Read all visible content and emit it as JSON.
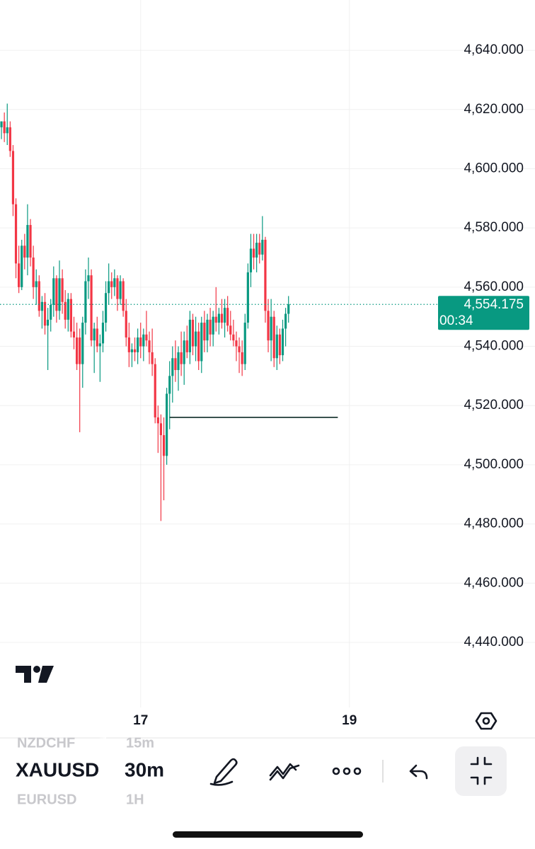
{
  "chart_data": {
    "type": "candlestick",
    "ohlc": [
      [
        4614,
        4616,
        4610,
        4616
      ],
      [
        4616,
        4619,
        4609,
        4612
      ],
      [
        4612,
        4622,
        4608,
        4614
      ],
      [
        4614,
        4616,
        4604,
        4606
      ],
      [
        4606,
        4608,
        4584,
        4588
      ],
      [
        4588,
        4590,
        4563,
        4568
      ],
      [
        4568,
        4574,
        4558,
        4560
      ],
      [
        4560,
        4576,
        4559,
        4574
      ],
      [
        4574,
        4578,
        4566,
        4570
      ],
      [
        4570,
        4588,
        4564,
        4581
      ],
      [
        4581,
        4583,
        4567,
        4570
      ],
      [
        4570,
        4574,
        4556,
        4560
      ],
      [
        4560,
        4566,
        4554,
        4562
      ],
      [
        4562,
        4564,
        4550,
        4552
      ],
      [
        4552,
        4557,
        4546,
        4555
      ],
      [
        4555,
        4558,
        4544,
        4547
      ],
      [
        4547,
        4553,
        4532,
        4549
      ],
      [
        4549,
        4556,
        4545,
        4554
      ],
      [
        4554,
        4567,
        4550,
        4563
      ],
      [
        4563,
        4564,
        4548,
        4552
      ],
      [
        4552,
        4569,
        4549,
        4563
      ],
      [
        4563,
        4566,
        4551,
        4555
      ],
      [
        4555,
        4559,
        4546,
        4549
      ],
      [
        4549,
        4558,
        4545,
        4556
      ],
      [
        4556,
        4558,
        4543,
        4545
      ],
      [
        4545,
        4550,
        4539,
        4543
      ],
      [
        4543,
        4548,
        4532,
        4534
      ],
      [
        4543,
        4546,
        4511,
        4534
      ],
      [
        4534,
        4550,
        4526,
        4548
      ],
      [
        4548,
        4566,
        4544,
        4562
      ],
      [
        4562,
        4570,
        4556,
        4564
      ],
      [
        4564,
        4566,
        4540,
        4542
      ],
      [
        4542,
        4548,
        4531,
        4546
      ],
      [
        4546,
        4550,
        4538,
        4540
      ],
      [
        4540,
        4544,
        4528,
        4541
      ],
      [
        4541,
        4552,
        4538,
        4548
      ],
      [
        4548,
        4562,
        4545,
        4558
      ],
      [
        4558,
        4568,
        4554,
        4562
      ],
      [
        4562,
        4565,
        4556,
        4560
      ],
      [
        4560,
        4566,
        4557,
        4563
      ],
      [
        4563,
        4564,
        4552,
        4556
      ],
      [
        4556,
        4564,
        4554,
        4562
      ],
      [
        4562,
        4563,
        4550,
        4552
      ],
      [
        4552,
        4556,
        4540,
        4543
      ],
      [
        4543,
        4548,
        4533,
        4538
      ],
      [
        4538,
        4541,
        4533,
        4539
      ],
      [
        4539,
        4543,
        4535,
        4538
      ],
      [
        4538,
        4546,
        4534,
        4543
      ],
      [
        4543,
        4548,
        4536,
        4540
      ],
      [
        4540,
        4546,
        4535,
        4544
      ],
      [
        4544,
        4552,
        4540,
        4542
      ],
      [
        4542,
        4545,
        4534,
        4538
      ],
      [
        4538,
        4546,
        4530,
        4534
      ],
      [
        4534,
        4536,
        4514,
        4516
      ],
      [
        4516,
        4520,
        4504,
        4514
      ],
      [
        4514,
        4517,
        4481,
        4510
      ],
      [
        4510,
        4516,
        4488,
        4503
      ],
      [
        4503,
        4526,
        4500,
        4524
      ],
      [
        4524,
        4535,
        4512,
        4530
      ],
      [
        4530,
        4540,
        4521,
        4536
      ],
      [
        4536,
        4542,
        4528,
        4532
      ],
      [
        4532,
        4540,
        4525,
        4538
      ],
      [
        4538,
        4545,
        4530,
        4534
      ],
      [
        4534,
        4545,
        4527,
        4542
      ],
      [
        4542,
        4547,
        4536,
        4538
      ],
      [
        4538,
        4552,
        4534,
        4549
      ],
      [
        4549,
        4551,
        4537,
        4540
      ],
      [
        4540,
        4550,
        4535,
        4545
      ],
      [
        4545,
        4548,
        4532,
        4535
      ],
      [
        4535,
        4550,
        4531,
        4548
      ],
      [
        4548,
        4552,
        4538,
        4542
      ],
      [
        4542,
        4551,
        4538,
        4549
      ],
      [
        4549,
        4553,
        4540,
        4544
      ],
      [
        4544,
        4552,
        4540,
        4550
      ],
      [
        4550,
        4560,
        4545,
        4548
      ],
      [
        4548,
        4553,
        4544,
        4551
      ],
      [
        4551,
        4556,
        4546,
        4548
      ],
      [
        4548,
        4556,
        4543,
        4553
      ],
      [
        4553,
        4557,
        4545,
        4547
      ],
      [
        4547,
        4552,
        4542,
        4544
      ],
      [
        4544,
        4549,
        4540,
        4542
      ],
      [
        4542,
        4545,
        4535,
        4540
      ],
      [
        4540,
        4543,
        4531,
        4538
      ],
      [
        4538,
        4542,
        4530,
        4534
      ],
      [
        4534,
        4551,
        4532,
        4548
      ],
      [
        4548,
        4568,
        4546,
        4565
      ],
      [
        4565,
        4578,
        4560,
        4573
      ],
      [
        4573,
        4578,
        4566,
        4570
      ],
      [
        4570,
        4578,
        4565,
        4575
      ],
      [
        4575,
        4578,
        4568,
        4571
      ],
      [
        4571,
        4584,
        4569,
        4576
      ],
      [
        4576,
        4577,
        4548,
        4552
      ],
      [
        4552,
        4556,
        4538,
        4542
      ],
      [
        4542,
        4556,
        4535,
        4550
      ],
      [
        4550,
        4552,
        4533,
        4536
      ],
      [
        4536,
        4547,
        4532,
        4544
      ],
      [
        4544,
        4546,
        4534,
        4537
      ],
      [
        4537,
        4549,
        4535,
        4546
      ],
      [
        4546,
        4553,
        4540,
        4551
      ],
      [
        4551,
        4557,
        4548,
        4554.175
      ]
    ],
    "up_color": "#089981",
    "down_color": "#f23645",
    "xlim": [
      -0.5,
      184
    ],
    "xticks": [
      {
        "value": 48,
        "label": "17"
      },
      {
        "value": 120,
        "label": "19"
      }
    ],
    "ylim": [
      4418,
      4657
    ],
    "yticks": [
      {
        "value": 4440,
        "label": "4,440.000"
      },
      {
        "value": 4460,
        "label": "4,460.000"
      },
      {
        "value": 4480,
        "label": "4,480.000"
      },
      {
        "value": 4500,
        "label": "4,500.000"
      },
      {
        "value": 4520,
        "label": "4,520.000"
      },
      {
        "value": 4540,
        "label": "4,540.000"
      },
      {
        "value": 4560,
        "label": "4,560.000"
      },
      {
        "value": 4580,
        "label": "4,580.000"
      },
      {
        "value": 4600,
        "label": "4,600.000"
      },
      {
        "value": 4620,
        "label": "4,620.000"
      },
      {
        "value": 4640,
        "label": "4,640.000"
      }
    ],
    "grid": true,
    "last_price": {
      "value": 4554.175,
      "label": "4,554.175"
    },
    "countdown": "00:34",
    "hline": {
      "value": 4516,
      "xrange": [
        58,
        116
      ],
      "color": "#0b2a26"
    }
  },
  "toolbar": {
    "symbols": [
      "NZDCHF",
      "XAUUSD",
      "EURUSD"
    ],
    "intervals": [
      "15m",
      "30m",
      "1H"
    ]
  }
}
